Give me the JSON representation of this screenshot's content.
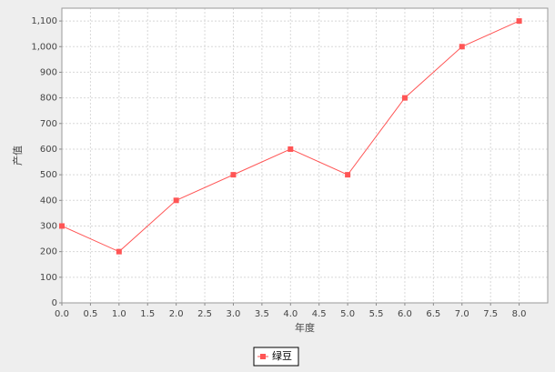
{
  "chart_data": {
    "type": "line",
    "x_label": "年度",
    "y_label": "产值",
    "x": [
      0,
      1,
      2,
      3,
      4,
      5,
      6,
      7,
      8
    ],
    "series": [
      {
        "name": "绿豆",
        "color": "#ff5555",
        "values": [
          300,
          200,
          400,
          500,
          600,
          500,
          800,
          1000,
          1100
        ]
      }
    ],
    "xlim": [
      0,
      8.5
    ],
    "xticks": [
      {
        "value": 0,
        "label": "0.0"
      },
      0.5,
      {
        "value": 1,
        "label": "1.0"
      },
      1.5,
      {
        "value": 2,
        "label": "2.0"
      },
      2.5,
      {
        "value": 3,
        "label": "3.0"
      },
      3.5,
      {
        "value": 4,
        "label": "4.0"
      },
      4.5,
      {
        "value": 5,
        "label": "5.0"
      },
      5.5,
      {
        "value": 6,
        "label": "6.0"
      },
      6.5,
      {
        "value": 7,
        "label": "7.0"
      },
      7.5,
      {
        "value": 8,
        "label": "8.0"
      }
    ],
    "ylim": [
      0,
      1150
    ],
    "yticks": [
      0,
      100,
      200,
      300,
      400,
      500,
      600,
      700,
      800,
      900,
      {
        "value": 1000,
        "label": "1,000"
      },
      {
        "value": 1100,
        "label": "1,100"
      }
    ],
    "grid": true,
    "legend": "bottom"
  }
}
